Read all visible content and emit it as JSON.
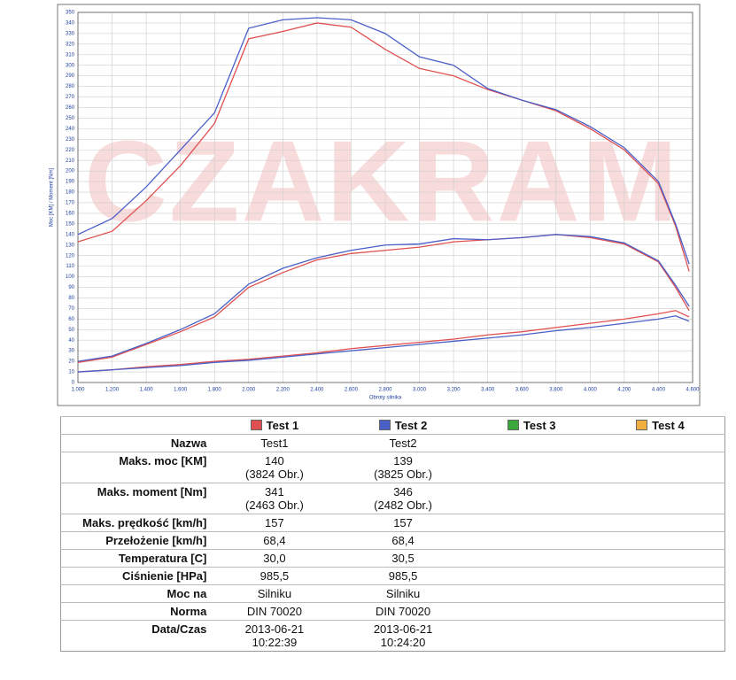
{
  "chart_data": {
    "type": "line",
    "watermark": "CZAKRAM",
    "ylabel": "Moc [KM] / Moment [Nm]",
    "xlabel": "Obroty silnika",
    "x": [
      1000,
      1200,
      1400,
      1600,
      1800,
      2000,
      2200,
      2400,
      2600,
      2800,
      3000,
      3200,
      3400,
      3600,
      3800,
      4000,
      4200,
      4400,
      4500,
      4580
    ],
    "series": [
      {
        "name": "Test 1",
        "color": "#e05050",
        "lines": [
          [
            133,
            143,
            172,
            205,
            245,
            325,
            332,
            340,
            336,
            315,
            297,
            290,
            277,
            267,
            257,
            240,
            220,
            188,
            148,
            105
          ],
          [
            19,
            24,
            36,
            48,
            62,
            90,
            104,
            116,
            122,
            125,
            128,
            133,
            135,
            137,
            140,
            137,
            131,
            114,
            90,
            68
          ],
          [
            10,
            12,
            15,
            17,
            20,
            22,
            25,
            28,
            32,
            35,
            38,
            41,
            45,
            48,
            52,
            56,
            60,
            65,
            68,
            62
          ]
        ]
      },
      {
        "name": "Test 2",
        "color": "#4a5fc8",
        "lines": [
          [
            140,
            155,
            185,
            220,
            255,
            335,
            343,
            345,
            343,
            330,
            308,
            300,
            278,
            267,
            258,
            242,
            222,
            190,
            150,
            112
          ],
          [
            20,
            25,
            37,
            50,
            65,
            93,
            108,
            118,
            125,
            130,
            131,
            136,
            135,
            137,
            140,
            138,
            132,
            115,
            92,
            72
          ],
          [
            10,
            12,
            14,
            16,
            19,
            21,
            24,
            27,
            30,
            33,
            36,
            39,
            42,
            45,
            49,
            52,
            56,
            60,
            63,
            58
          ]
        ]
      }
    ],
    "xlim": [
      1000,
      4600
    ],
    "xticks": [
      {
        "value": 1000,
        "label": "1.000"
      },
      {
        "value": 1200,
        "label": "1.200"
      },
      {
        "value": 1400,
        "label": "1.400"
      },
      {
        "value": 1600,
        "label": "1.600"
      },
      {
        "value": 1800,
        "label": "1.800"
      },
      {
        "value": 2000,
        "label": "2.000"
      },
      {
        "value": 2200,
        "label": "2.200"
      },
      {
        "value": 2400,
        "label": "2.400"
      },
      {
        "value": 2600,
        "label": "2.600"
      },
      {
        "value": 2800,
        "label": "2.800"
      },
      {
        "value": 3000,
        "label": "3.000"
      },
      {
        "value": 3200,
        "label": "3.200"
      },
      {
        "value": 3400,
        "label": "3.400"
      },
      {
        "value": 3600,
        "label": "3.600"
      },
      {
        "value": 3800,
        "label": "3.800"
      },
      {
        "value": 4000,
        "label": "4.000"
      },
      {
        "value": 4200,
        "label": "4.200"
      },
      {
        "value": 4400,
        "label": "4.400"
      },
      {
        "value": 4600,
        "label": "4.600"
      }
    ],
    "ylim": [
      0,
      350
    ],
    "yticks": [
      0,
      10,
      20,
      30,
      40,
      50,
      60,
      70,
      80,
      90,
      100,
      110,
      120,
      130,
      140,
      150,
      160,
      170,
      180,
      190,
      200,
      210,
      220,
      230,
      240,
      250,
      260,
      270,
      280,
      290,
      300,
      310,
      320,
      330,
      340,
      350
    ],
    "grid": true
  },
  "table": {
    "legend": [
      {
        "name": "Test 1",
        "color": "#e05050"
      },
      {
        "name": "Test 2",
        "color": "#4a5fc8"
      },
      {
        "name": "Test 3",
        "color": "#3aa83a"
      },
      {
        "name": "Test 4",
        "color": "#f0b040"
      }
    ],
    "rows": [
      {
        "label": "Nazwa",
        "cells": [
          [
            "Test1"
          ],
          [
            "Test2"
          ]
        ]
      },
      {
        "label": "Maks. moc [KM]",
        "cells": [
          [
            "140",
            "(3824 Obr.)"
          ],
          [
            "139",
            "(3825 Obr.)"
          ]
        ]
      },
      {
        "label": "Maks. moment [Nm]",
        "cells": [
          [
            "341",
            "(2463 Obr.)"
          ],
          [
            "346",
            "(2482 Obr.)"
          ]
        ]
      },
      {
        "label": "Maks. prędkość [km/h]",
        "cells": [
          [
            "157"
          ],
          [
            "157"
          ]
        ]
      },
      {
        "label": "Przełożenie [km/h]",
        "cells": [
          [
            "68,4"
          ],
          [
            "68,4"
          ]
        ]
      },
      {
        "label": "Temperatura [C]",
        "cells": [
          [
            "30,0"
          ],
          [
            "30,5"
          ]
        ]
      },
      {
        "label": "Ciśnienie [HPa]",
        "cells": [
          [
            "985,5"
          ],
          [
            "985,5"
          ]
        ]
      },
      {
        "label": "Moc na",
        "cells": [
          [
            "Silniku"
          ],
          [
            "Silniku"
          ]
        ]
      },
      {
        "label": "Norma",
        "cells": [
          [
            "DIN 70020"
          ],
          [
            "DIN 70020"
          ]
        ]
      },
      {
        "label": "Data/Czas",
        "cells": [
          [
            "2013-06-21",
            "10:22:39"
          ],
          [
            "2013-06-21",
            "10:24:20"
          ]
        ]
      }
    ]
  }
}
